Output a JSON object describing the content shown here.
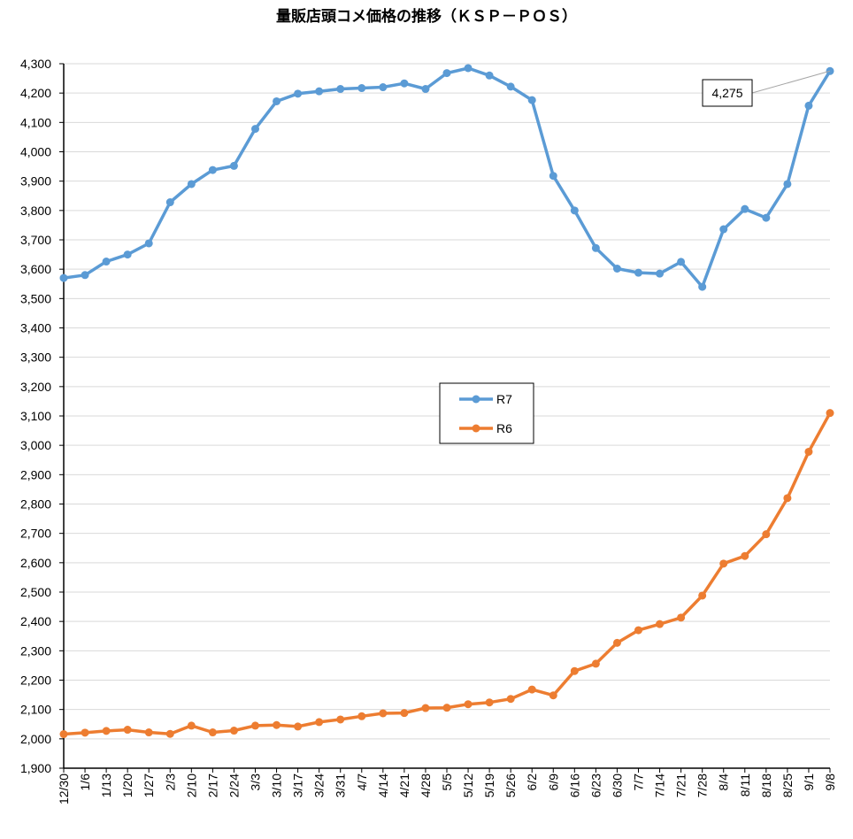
{
  "chart_data": {
    "type": "line",
    "title": "量販店頭コメ価格の推移（ＫＳＰ－ＰＯＳ）",
    "ylim": [
      1900,
      4300
    ],
    "ytick_step": 100,
    "grid": "horizontal",
    "legend_position": "center",
    "categories": [
      "12/30",
      "1/6",
      "1/13",
      "1/20",
      "1/27",
      "2/3",
      "2/10",
      "2/17",
      "2/24",
      "3/3",
      "3/10",
      "3/17",
      "3/24",
      "3/31",
      "4/7",
      "4/14",
      "4/21",
      "4/28",
      "5/5",
      "5/12",
      "5/19",
      "5/26",
      "6/2",
      "6/9",
      "6/16",
      "6/23",
      "6/30",
      "7/7",
      "7/14",
      "7/21",
      "7/28",
      "8/4",
      "8/11",
      "8/18",
      "8/25",
      "9/1",
      "9/8"
    ],
    "series": [
      {
        "name": "R7",
        "color": "#5B9BD5",
        "values": [
          3570,
          3580,
          3626,
          3650,
          3688,
          3828,
          3890,
          3938,
          3952,
          4078,
          4172,
          4198,
          4206,
          4214,
          4217,
          4220,
          4233,
          4214,
          4268,
          4285,
          4260,
          4222,
          4176,
          3918,
          3800,
          3672,
          3602,
          3588,
          3585,
          3625,
          3540,
          3736,
          3805,
          3775,
          3890,
          4157,
          4275
        ]
      },
      {
        "name": "R6",
        "color": "#ED7D31",
        "values": [
          2016,
          2021,
          2027,
          2031,
          2022,
          2017,
          2045,
          2022,
          2028,
          2045,
          2047,
          2042,
          2057,
          2066,
          2077,
          2087,
          2088,
          2105,
          2106,
          2118,
          2124,
          2136,
          2168,
          2148,
          2231,
          2256,
          2327,
          2370,
          2391,
          2413,
          2488,
          2597,
          2623,
          2697,
          2820,
          2978,
          3110
        ]
      }
    ],
    "annotation": {
      "series": "R7",
      "point_index": 36,
      "label": "4,275"
    }
  }
}
